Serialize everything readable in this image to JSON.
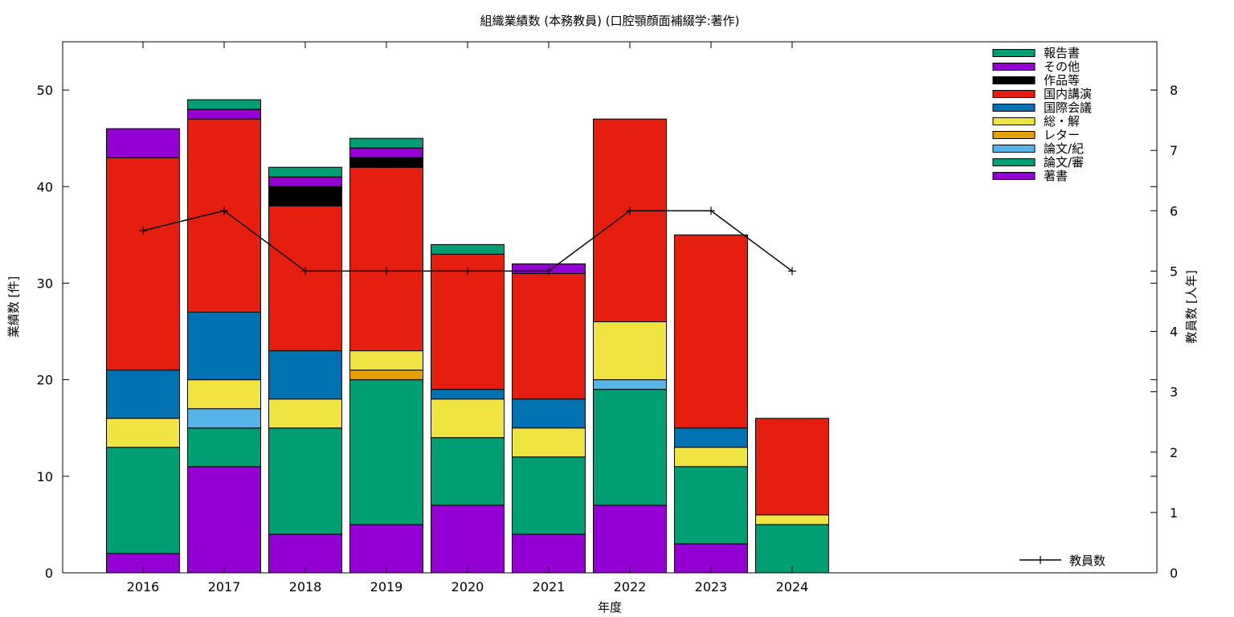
{
  "chart_data": {
    "type": "bar",
    "title": "組織業績数 (本務教員) (口腔顎顔面補綴学:著作)",
    "xlabel": "年度",
    "ylabel": "業績数 [件]",
    "y2label": "教員数 [人年]",
    "categories": [
      "2016",
      "2017",
      "2018",
      "2019",
      "2020",
      "2021",
      "2022",
      "2023",
      "2024"
    ],
    "ylim": [
      0,
      55
    ],
    "yticks": [
      0,
      10,
      20,
      30,
      40,
      50
    ],
    "y2lim": [
      0,
      8.8
    ],
    "y2ticks": [
      0,
      1,
      2,
      3,
      4,
      5,
      6,
      7,
      8
    ],
    "stacked": true,
    "legend_position": "top-right",
    "series": [
      {
        "name": "著書",
        "color": "#9400d3",
        "values": [
          2,
          11,
          4,
          5,
          7,
          4,
          7,
          3,
          0
        ]
      },
      {
        "name": "論文/審",
        "color": "#009e73",
        "values": [
          11,
          4,
          11,
          15,
          7,
          8,
          12,
          8,
          5
        ]
      },
      {
        "name": "論文/紀",
        "color": "#56b4e9",
        "values": [
          0,
          2,
          0,
          0,
          0,
          0,
          1,
          0,
          0
        ]
      },
      {
        "name": "レター",
        "color": "#e69f00",
        "values": [
          0,
          0,
          0,
          1,
          0,
          0,
          0,
          0,
          0
        ]
      },
      {
        "name": "総・解",
        "color": "#f0e442",
        "values": [
          3,
          3,
          3,
          2,
          4,
          3,
          6,
          2,
          1
        ]
      },
      {
        "name": "国際会議",
        "color": "#0072b2",
        "values": [
          5,
          7,
          5,
          0,
          1,
          3,
          0,
          2,
          0
        ]
      },
      {
        "name": "国内講演",
        "color": "#e51e10",
        "values": [
          22,
          20,
          15,
          19,
          14,
          13,
          21,
          20,
          10
        ]
      },
      {
        "name": "作品等",
        "color": "#000000",
        "values": [
          0,
          0,
          2,
          1,
          0,
          0,
          0,
          0,
          0
        ]
      },
      {
        "name": "その他",
        "color": "#9400d3",
        "values": [
          3,
          1,
          1,
          1,
          0,
          1,
          0,
          0,
          0
        ]
      },
      {
        "name": "報告書",
        "color": "#009e73",
        "values": [
          0,
          1,
          1,
          1,
          1,
          0,
          0,
          0,
          0
        ]
      }
    ],
    "line_series": {
      "name": "教員数",
      "color": "#000000",
      "axis": "y2",
      "values": [
        5.67,
        6,
        5,
        5,
        5,
        5,
        6,
        6,
        5
      ]
    },
    "grid": false
  }
}
